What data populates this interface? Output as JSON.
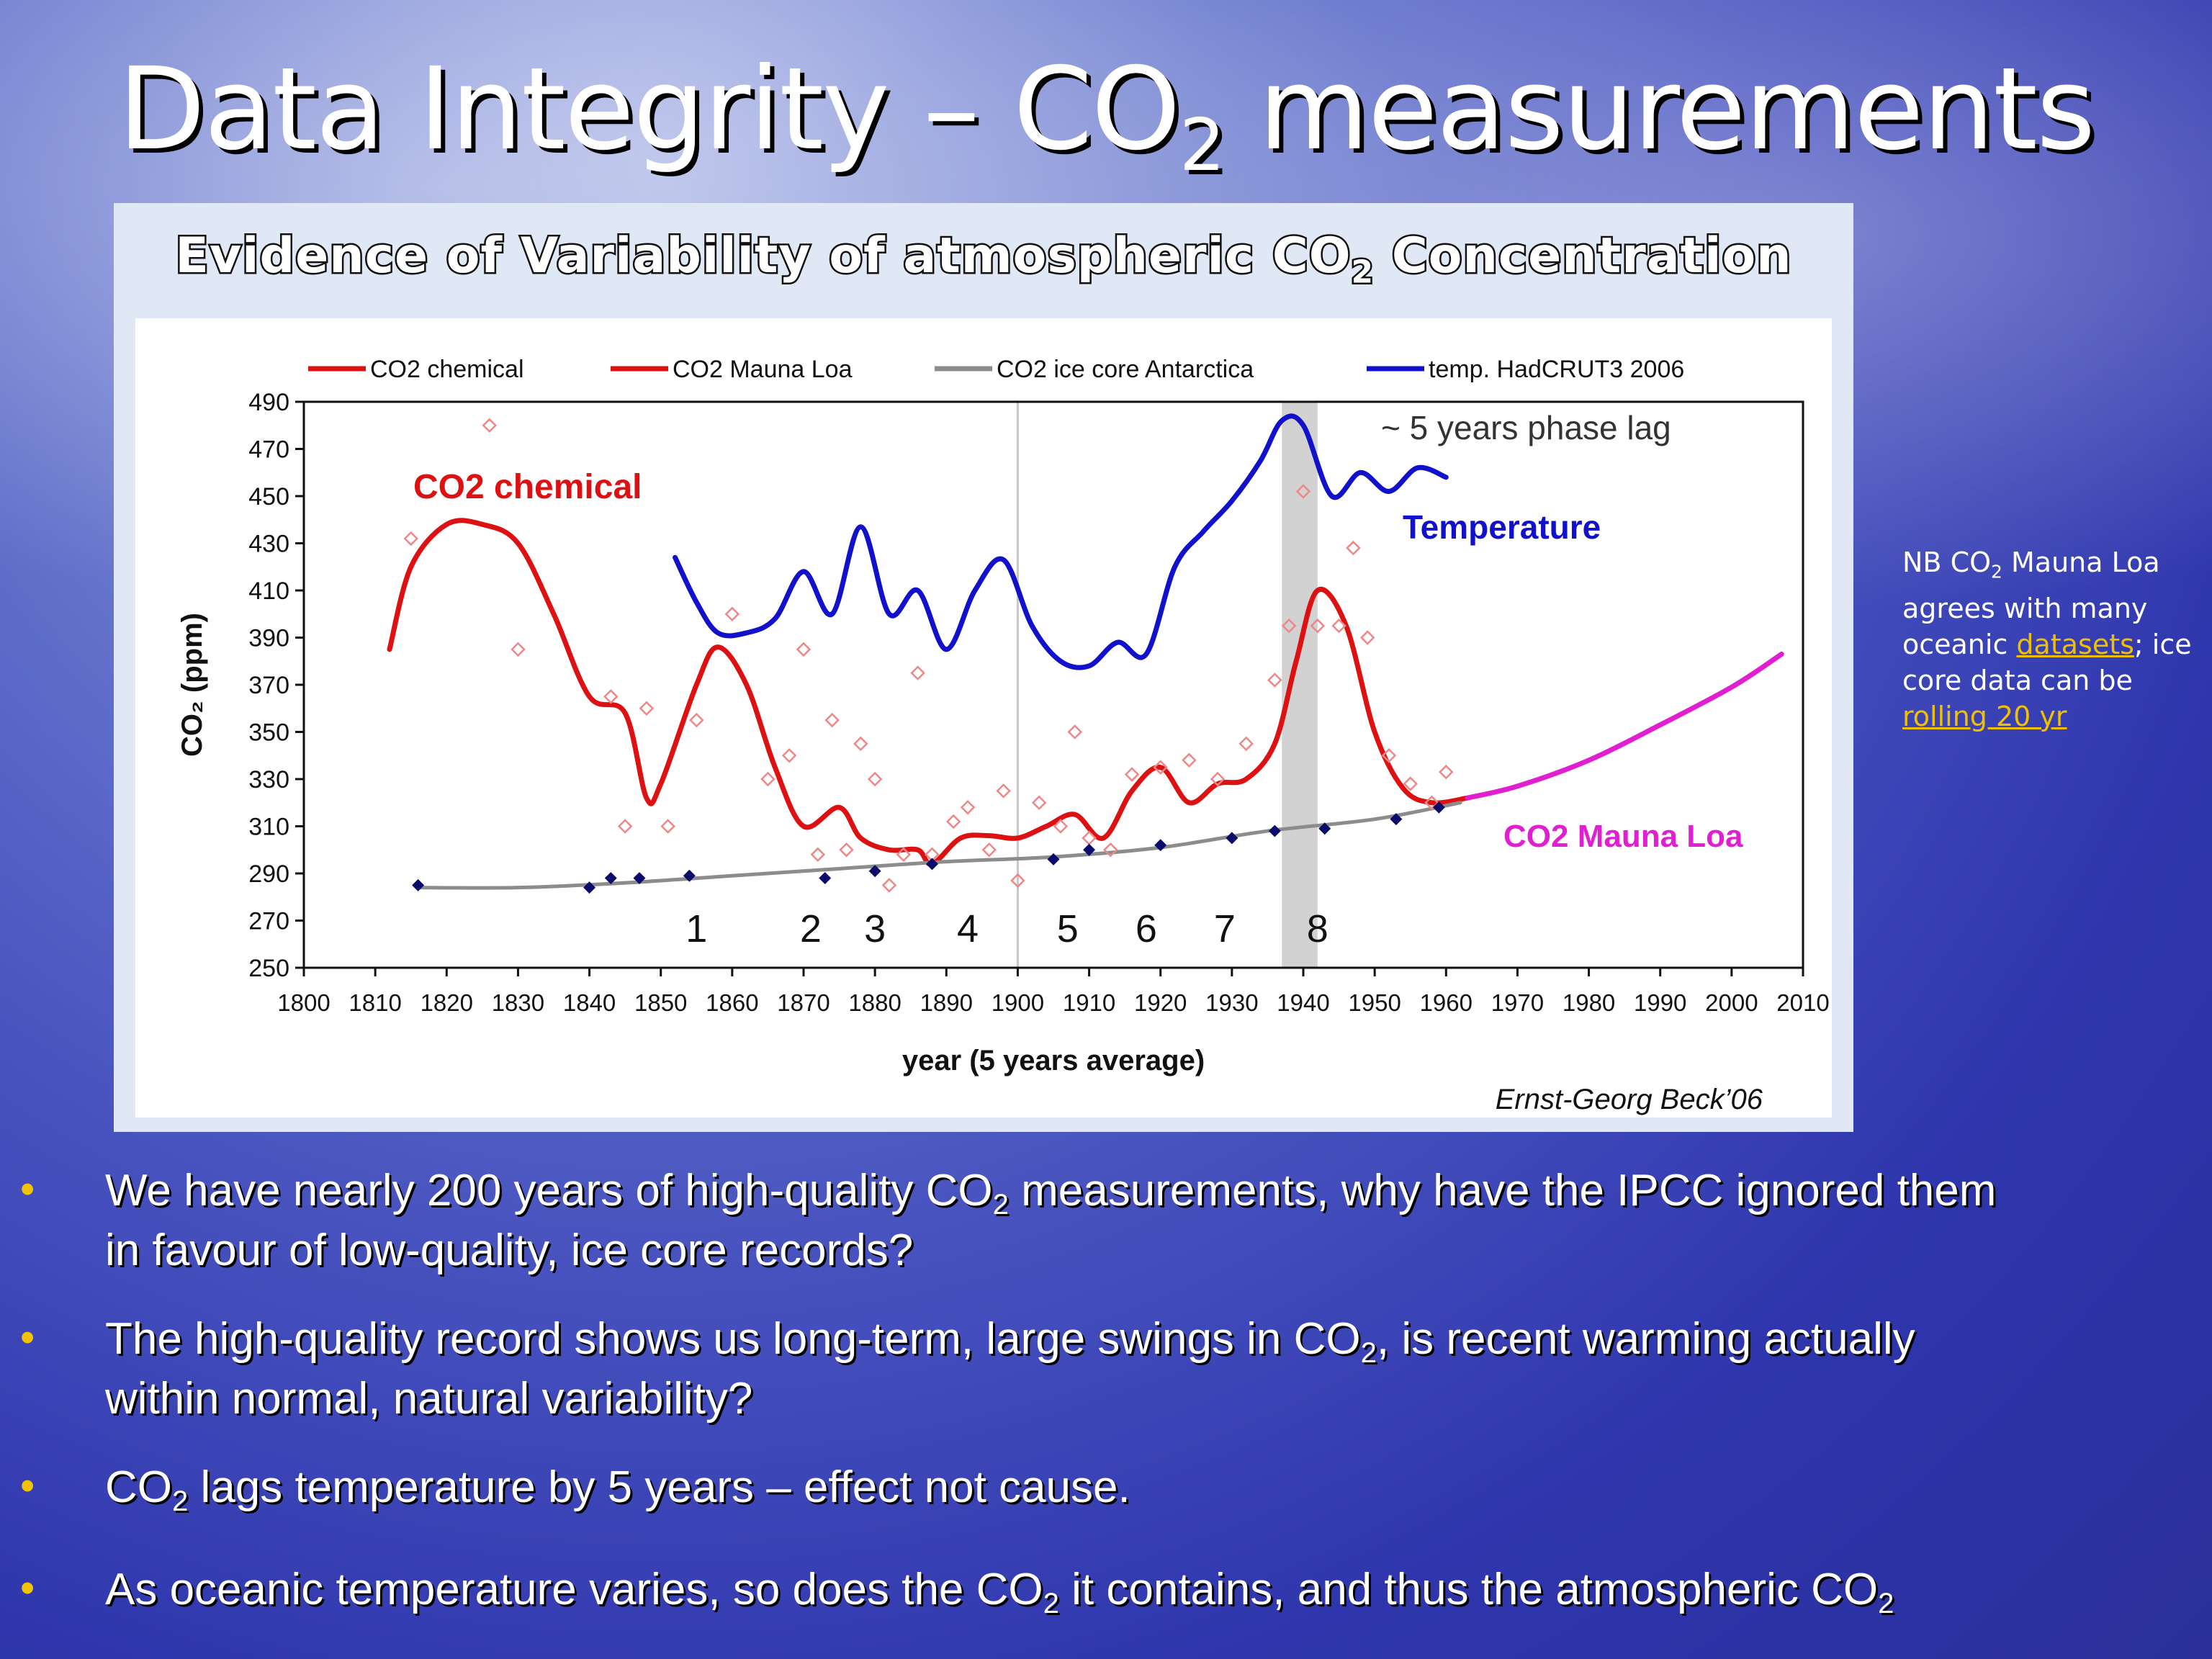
{
  "slide": {
    "title_pre": "Data Integrity – CO",
    "title_sub": "2",
    "title_post": " measurements"
  },
  "figure": {
    "title_pre": "Evidence of Variability of atmospheric CO",
    "title_sub": "2",
    "title_post": " Concentration",
    "credit": "Ernst-Georg Beck’06"
  },
  "side_note": {
    "p1": "NB CO",
    "p1_sub": "2",
    "p2": " Mauna Loa agrees with many oceanic ",
    "link1": "datasets",
    "p3": "; ice core data can be ",
    "link2": "rolling 20 yr"
  },
  "bullets": [
    {
      "pre": "We have nearly 200 years of high-quality CO",
      "sub": "2",
      "post": " measurements, why have the IPCC ignored them",
      "line2": "in favour of low-quality, ice core records?"
    },
    {
      "pre": "The high-quality record shows us long-term, large swings in CO",
      "sub": "2",
      "post": ", is recent warming actually",
      "line2": "within normal, natural variability?"
    },
    {
      "pre": "CO",
      "sub": "2",
      "post": " lags temperature by 5 years – effect not cause.",
      "line2": ""
    },
    {
      "pre": "As oceanic temperature varies, so does the CO",
      "sub": "2",
      "post": " it contains, and thus the atmospheric CO",
      "sub2": "2",
      "line2": ""
    }
  ],
  "chart_data": {
    "type": "line",
    "xlabel": "year (5 years average)",
    "ylabel": "CO₂ (ppm)",
    "xlim": [
      1800,
      2010
    ],
    "ylim": [
      250,
      490
    ],
    "xticks": [
      1800,
      1810,
      1820,
      1830,
      1840,
      1850,
      1860,
      1870,
      1880,
      1890,
      1900,
      1910,
      1920,
      1930,
      1940,
      1950,
      1960,
      1970,
      1980,
      1990,
      2000,
      2010
    ],
    "yticks": [
      250,
      270,
      290,
      310,
      330,
      350,
      370,
      390,
      410,
      430,
      450,
      470,
      490
    ],
    "legend": [
      {
        "label": "CO2 chemical",
        "color": "#dd1111"
      },
      {
        "label": "CO2  Mauna Loa",
        "color": "#dd1111"
      },
      {
        "label": "CO2 ice core Antarctica",
        "color": "#8c8c8c"
      },
      {
        "label": "temp. HadCRUT3 2006",
        "color": "#1111cc"
      }
    ],
    "annotations": {
      "phase_lag": "~ 5 years phase lag",
      "chem_label": "CO2 chemical",
      "temp_label": "Temperature",
      "ml_label": "CO2 Mauna Loa",
      "period_numbers": [
        {
          "text": "1",
          "x": 1855
        },
        {
          "text": "2",
          "x": 1871
        },
        {
          "text": "3",
          "x": 1880
        },
        {
          "text": "4",
          "x": 1893
        },
        {
          "text": "5",
          "x": 1907
        },
        {
          "text": "6",
          "x": 1918
        },
        {
          "text": "7",
          "x": 1929
        },
        {
          "text": "8",
          "x": 1942
        }
      ],
      "highlight_band": [
        1937,
        1942
      ],
      "reference_line_x": 1900
    },
    "series": [
      {
        "name": "CO2 chemical",
        "color": "#dd1111",
        "x": [
          1812,
          1815,
          1820,
          1825,
          1830,
          1835,
          1840,
          1845,
          1848,
          1850,
          1855,
          1858,
          1862,
          1866,
          1870,
          1875,
          1878,
          1882,
          1886,
          1888,
          1892,
          1896,
          1900,
          1904,
          1908,
          1912,
          1916,
          1920,
          1924,
          1928,
          1932,
          1936,
          1939,
          1942,
          1946,
          1950,
          1954,
          1958,
          1963
        ],
        "y": [
          385,
          420,
          438,
          438,
          430,
          400,
          365,
          358,
          322,
          328,
          370,
          386,
          370,
          335,
          310,
          318,
          305,
          300,
          300,
          294,
          305,
          306,
          305,
          310,
          315,
          305,
          325,
          335,
          320,
          328,
          330,
          345,
          380,
          410,
          395,
          350,
          326,
          320,
          322
        ]
      },
      {
        "name": "CO2  Mauna Loa",
        "color": "#e020d0",
        "x": [
          1963,
          1970,
          1980,
          1990,
          2000,
          2007
        ],
        "y": [
          322,
          327,
          338,
          353,
          369,
          383
        ]
      },
      {
        "name": "CO2 ice core Antarctica",
        "color": "#8c8c8c",
        "x": [
          1816,
          1830,
          1845,
          1860,
          1875,
          1890,
          1905,
          1920,
          1935,
          1950,
          1962
        ],
        "y": [
          284,
          284,
          286,
          289,
          292,
          295,
          297,
          301,
          308,
          313,
          320
        ]
      },
      {
        "name": "temp. HadCRUT3 2006",
        "color": "#1111cc",
        "x": [
          1852,
          1855,
          1858,
          1862,
          1866,
          1870,
          1874,
          1878,
          1882,
          1886,
          1890,
          1894,
          1898,
          1902,
          1906,
          1910,
          1914,
          1918,
          1922,
          1926,
          1930,
          1934,
          1937,
          1940,
          1944,
          1948,
          1952,
          1956,
          1960
        ],
        "y": [
          424,
          405,
          392,
          392,
          398,
          418,
          400,
          437,
          400,
          410,
          385,
          410,
          423,
          395,
          380,
          378,
          388,
          383,
          420,
          435,
          448,
          465,
          482,
          480,
          450,
          460,
          452,
          462,
          458
        ]
      },
      {
        "name": "",
        "type": "scatter",
        "color": "#ee8888",
        "x": [
          1815,
          1826,
          1830,
          1843,
          1845,
          1848,
          1851,
          1855,
          1860,
          1865,
          1868,
          1870,
          1872,
          1874,
          1876,
          1878,
          1880,
          1882,
          1884,
          1886,
          1888,
          1891,
          1893,
          1896,
          1898,
          1900,
          1903,
          1906,
          1908,
          1910,
          1913,
          1916,
          1920,
          1924,
          1928,
          1932,
          1936,
          1938,
          1940,
          1942,
          1945,
          1947,
          1949,
          1952,
          1955,
          1958,
          1960
        ],
        "y": [
          432,
          480,
          385,
          365,
          310,
          360,
          310,
          355,
          400,
          330,
          340,
          385,
          298,
          355,
          300,
          345,
          330,
          285,
          298,
          375,
          298,
          312,
          318,
          300,
          325,
          287,
          320,
          310,
          350,
          305,
          300,
          332,
          335,
          338,
          330,
          345,
          372,
          395,
          452,
          395,
          395,
          428,
          390,
          340,
          328,
          320,
          333
        ]
      },
      {
        "name": "",
        "type": "scatter",
        "color": "#0a0a6a",
        "x": [
          1816,
          1840,
          1843,
          1847,
          1854,
          1873,
          1880,
          1888,
          1905,
          1910,
          1920,
          1930,
          1936,
          1943,
          1953,
          1959
        ],
        "y": [
          285,
          284,
          288,
          288,
          289,
          288,
          291,
          294,
          296,
          300,
          302,
          305,
          308,
          309,
          313,
          318
        ]
      }
    ]
  }
}
